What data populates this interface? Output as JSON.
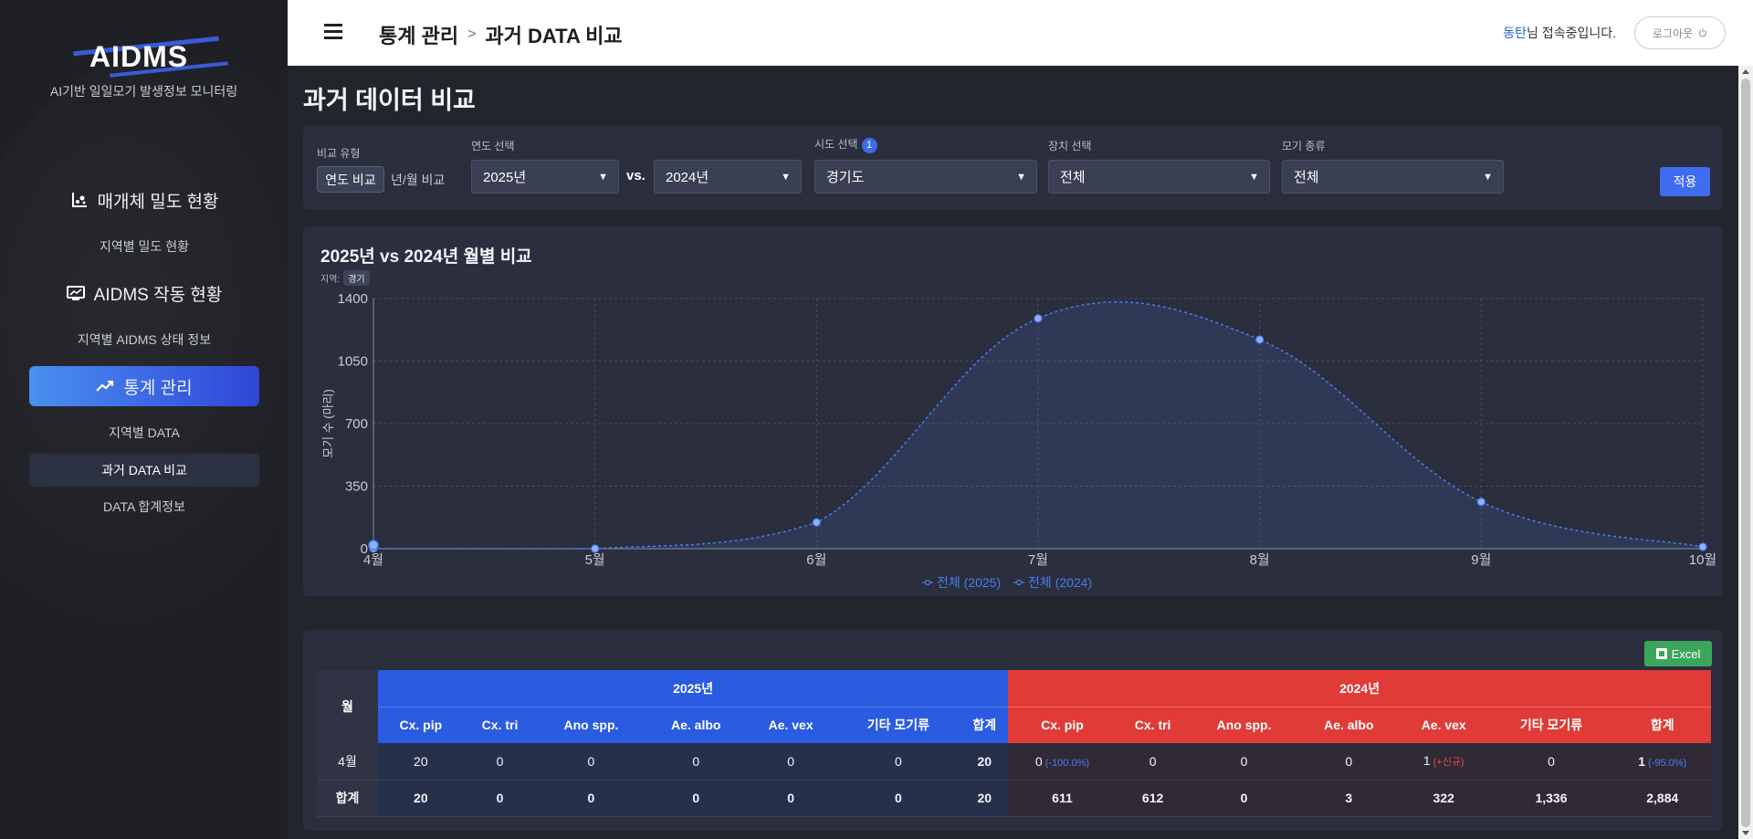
{
  "sidebar": {
    "logo_text": "AIDMS",
    "logo_sub": "AI기반 일일모기 발생정보 모니터링",
    "sections": [
      {
        "label": "매개체 밀도 현황",
        "icon": "density-chart-icon",
        "subs": [
          "지역별 밀도 현황"
        ]
      },
      {
        "label": "AIDMS 작동 현황",
        "icon": "monitor-icon",
        "subs": [
          "지역별 AIDMS 상태 정보"
        ]
      },
      {
        "label": "통계 관리",
        "icon": "trend-up-icon",
        "subs": [
          "지역별 DATA",
          "과거 DATA 비교",
          "DATA 합계정보"
        ]
      }
    ]
  },
  "header": {
    "breadcrumb": [
      "통계 관리",
      "과거 DATA 비교"
    ],
    "separator": ">",
    "user_name": "동탄",
    "user_suffix": "님 접속중입니다.",
    "logout_label": "로그아웃",
    "logout_icon": "power-icon"
  },
  "page_title": "과거 데이터 비교",
  "filters": {
    "compare_type_label": "비교 유형",
    "compare_options": [
      "연도 비교",
      "년/월 비교"
    ],
    "compare_selected": "연도 비교",
    "year_label": "연도 선택",
    "year_a": "2025년",
    "vs": "vs.",
    "year_b": "2024년",
    "sido_label": "시도 선택",
    "sido_badge": "1",
    "sido_value": "경기도",
    "device_label": "장치 선택",
    "device_value": "전체",
    "mosquito_label": "모기 종류",
    "mosquito_value": "전체",
    "apply_label": "적용"
  },
  "chart": {
    "title": "2025년 vs 2024년 월별 비교",
    "region_label": "지역:",
    "region_value": "경기",
    "ylabel": "모기 수 (마리)"
  },
  "chart_data": {
    "type": "line",
    "title": "2025년 vs 2024년 월별 비교",
    "ylabel": "모기 수 (마리)",
    "xlabel": "",
    "categories": [
      "4월",
      "5월",
      "6월",
      "7월",
      "8월",
      "9월",
      "10월"
    ],
    "ylim": [
      0,
      1400
    ],
    "yticks": [
      0,
      350,
      700,
      1050,
      1400
    ],
    "series": [
      {
        "name": "전체 (2025)",
        "values": [
          20,
          null,
          null,
          null,
          null,
          null,
          null
        ],
        "color": "#4b7cf0"
      },
      {
        "name": "전체 (2024)",
        "values": [
          1,
          0,
          147,
          1289,
          1170,
          262,
          10
        ],
        "color": "#4b7cf0"
      }
    ],
    "legend_position": "bottom",
    "grid": true
  },
  "table": {
    "excel_label": "Excel",
    "month_header": "월",
    "year_a": "2025년",
    "year_b": "2024년",
    "species": [
      "Cx. pip",
      "Cx. tri",
      "Ano spp.",
      "Ae. albo",
      "Ae. vex",
      "기타 모기류",
      "합계"
    ],
    "rows": [
      {
        "month": "4월",
        "a": [
          "20",
          "0",
          "0",
          "0",
          "0",
          "0",
          "20"
        ],
        "b": [
          "0",
          "0",
          "0",
          "0",
          "1",
          "0",
          "1"
        ],
        "b_notes": [
          "(-100.0%)",
          "",
          "",
          "",
          "(+신규)",
          "",
          "(-95.0%)"
        ]
      },
      {
        "month": "합계",
        "a": [
          "20",
          "0",
          "0",
          "0",
          "0",
          "0",
          "20"
        ],
        "b": [
          "611",
          "612",
          "0",
          "3",
          "322",
          "1,336",
          "2,884"
        ],
        "b_notes": [
          "",
          "",
          "",
          "",
          "",
          "",
          ""
        ]
      }
    ]
  }
}
